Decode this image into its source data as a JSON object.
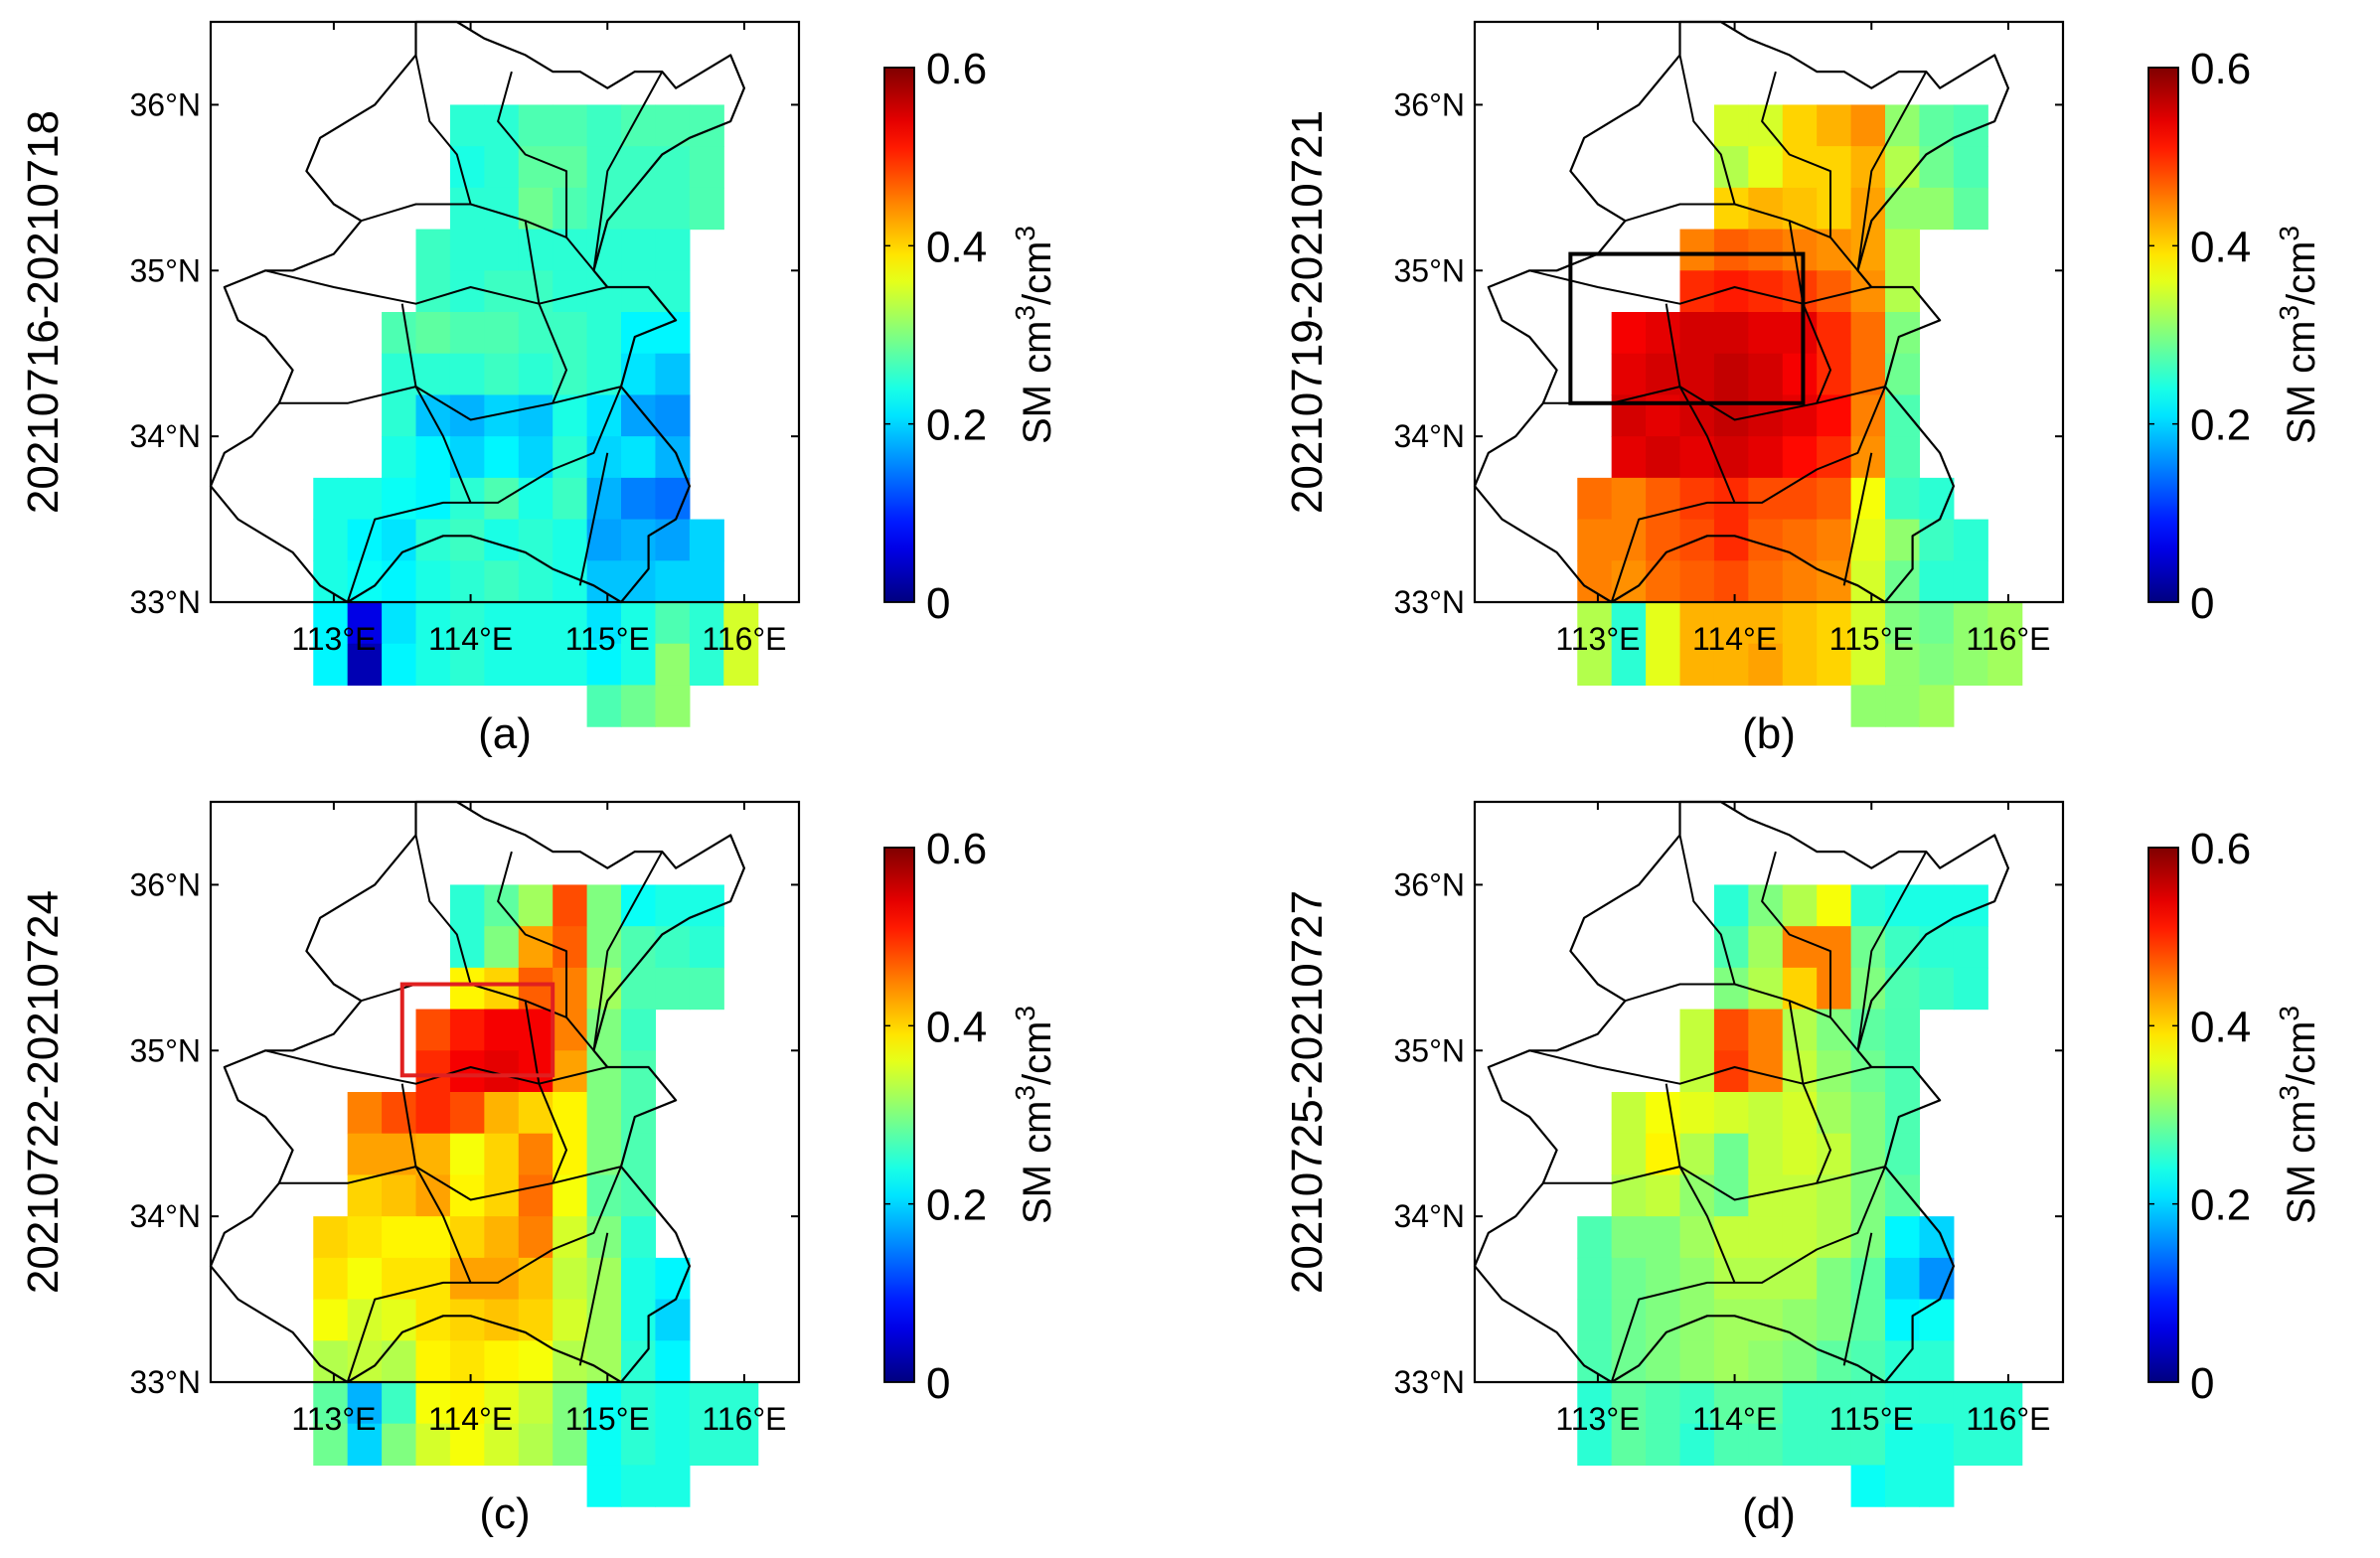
{
  "figure": {
    "colorbar": {
      "min": 0,
      "max": 0.6,
      "ticks": [
        "0",
        "0.2",
        "0.4",
        "0.6"
      ],
      "tick_values": [
        0,
        0.2,
        0.4,
        0.6
      ],
      "label_prefix": "SM cm",
      "label_sup1": "3",
      "label_mid": "/cm",
      "label_sup2": "3",
      "colormap": "jet"
    },
    "x_ticks": [
      "113°E",
      "114°E",
      "115°E",
      "116°E"
    ],
    "x_tick_values": [
      113,
      114,
      115,
      116
    ],
    "y_ticks": [
      "33°N",
      "34°N",
      "35°N",
      "36°N"
    ],
    "y_tick_values": [
      33,
      34,
      35,
      36
    ],
    "lon_range": [
      112.1,
      116.4
    ],
    "lat_range": [
      33.0,
      36.5
    ],
    "grid_lon_start": 112.6,
    "grid_lat_top": 36.0,
    "grid_cell_deg": 0.25
  },
  "chart_data": [
    {
      "type": "heatmap",
      "panel": "(a)",
      "date_range": "20210716-20210718",
      "title": "",
      "xlabel": "",
      "ylabel": "SM cm3/cm3",
      "grid": [
        [
          null,
          null,
          null,
          null,
          null,
          0.25,
          0.25,
          0.27,
          0.27,
          0.26,
          0.27,
          0.27,
          0.27,
          null,
          null,
          null
        ],
        [
          null,
          null,
          null,
          null,
          null,
          0.24,
          0.25,
          0.28,
          0.28,
          0.26,
          0.26,
          0.26,
          0.27,
          null,
          null,
          null
        ],
        [
          null,
          null,
          null,
          null,
          null,
          0.25,
          0.25,
          0.29,
          0.27,
          0.26,
          0.26,
          0.26,
          0.27,
          null,
          null,
          null
        ],
        [
          null,
          null,
          null,
          null,
          0.26,
          0.25,
          0.25,
          0.25,
          0.25,
          0.25,
          0.25,
          0.25,
          null,
          null,
          null,
          null
        ],
        [
          null,
          null,
          null,
          null,
          0.26,
          0.25,
          0.26,
          0.26,
          0.25,
          0.25,
          0.25,
          0.25,
          null,
          null,
          null,
          null
        ],
        [
          null,
          null,
          null,
          0.27,
          0.28,
          0.27,
          0.27,
          0.26,
          0.26,
          0.25,
          0.22,
          0.22,
          null,
          null,
          null,
          null
        ],
        [
          null,
          null,
          null,
          0.25,
          0.25,
          0.25,
          0.26,
          0.25,
          0.26,
          0.25,
          0.21,
          0.19,
          null,
          null,
          null,
          null
        ],
        [
          null,
          null,
          null,
          0.25,
          0.19,
          0.18,
          0.2,
          0.19,
          0.24,
          0.21,
          0.17,
          0.16,
          null,
          null,
          null,
          null
        ],
        [
          null,
          null,
          null,
          0.24,
          0.22,
          0.2,
          0.22,
          0.2,
          0.25,
          0.2,
          0.21,
          0.18,
          null,
          null,
          null,
          null
        ],
        [
          null,
          0.24,
          0.24,
          0.23,
          0.22,
          0.25,
          0.27,
          0.24,
          0.26,
          0.18,
          0.15,
          0.14,
          null,
          null,
          null,
          null
        ],
        [
          null,
          0.24,
          0.22,
          0.21,
          0.25,
          0.26,
          0.24,
          0.25,
          0.24,
          0.17,
          0.18,
          0.17,
          0.2,
          null,
          null,
          null
        ],
        [
          null,
          0.24,
          0.23,
          0.22,
          0.24,
          0.25,
          0.26,
          0.25,
          0.24,
          0.19,
          0.19,
          0.2,
          0.2,
          null,
          null,
          null
        ],
        [
          null,
          0.22,
          0.06,
          0.21,
          0.24,
          0.25,
          0.24,
          0.24,
          0.24,
          0.21,
          0.24,
          0.27,
          0.25,
          0.35,
          null,
          null
        ],
        [
          null,
          0.22,
          0.03,
          0.22,
          0.24,
          0.25,
          0.24,
          0.24,
          0.24,
          0.22,
          0.24,
          0.31,
          0.25,
          0.35,
          null,
          null
        ],
        [
          null,
          null,
          null,
          null,
          null,
          null,
          null,
          null,
          null,
          0.27,
          0.29,
          0.31,
          null,
          null,
          null,
          null
        ]
      ]
    },
    {
      "type": "heatmap",
      "panel": "(b)",
      "date_range": "20210719-20210721",
      "title": "",
      "xlabel": "",
      "ylabel": "SM cm3/cm3",
      "grid": [
        [
          null,
          null,
          null,
          null,
          null,
          0.35,
          0.35,
          0.4,
          0.42,
          0.44,
          0.31,
          0.28,
          0.27,
          null,
          null,
          null
        ],
        [
          null,
          null,
          null,
          null,
          null,
          0.33,
          0.36,
          0.4,
          0.4,
          0.42,
          0.33,
          0.29,
          0.27,
          null,
          null,
          null
        ],
        [
          null,
          null,
          null,
          null,
          null,
          0.4,
          0.42,
          0.41,
          0.4,
          0.43,
          0.31,
          0.31,
          0.28,
          null,
          null,
          null
        ],
        [
          null,
          null,
          null,
          null,
          0.45,
          0.47,
          0.46,
          0.45,
          0.44,
          0.43,
          0.33,
          null,
          null,
          null,
          null,
          null
        ],
        [
          null,
          null,
          null,
          null,
          0.5,
          0.51,
          0.5,
          0.49,
          0.47,
          0.44,
          0.33,
          null,
          null,
          null,
          null,
          null
        ],
        [
          null,
          null,
          0.53,
          0.54,
          0.55,
          0.55,
          0.54,
          0.54,
          0.5,
          0.46,
          0.3,
          null,
          null,
          null,
          null,
          null
        ],
        [
          null,
          null,
          0.54,
          0.55,
          0.55,
          0.56,
          0.55,
          0.53,
          0.5,
          0.46,
          0.29,
          null,
          null,
          null,
          null,
          null
        ],
        [
          null,
          null,
          0.55,
          0.54,
          0.55,
          0.56,
          0.55,
          0.54,
          0.52,
          0.45,
          0.27,
          null,
          null,
          null,
          null,
          null
        ],
        [
          null,
          null,
          0.54,
          0.55,
          0.54,
          0.55,
          0.54,
          0.52,
          0.5,
          0.44,
          0.27,
          null,
          null,
          null,
          null,
          null
        ],
        [
          null,
          0.46,
          0.45,
          0.47,
          0.49,
          0.5,
          0.48,
          0.48,
          0.47,
          0.37,
          0.26,
          0.25,
          null,
          null,
          null,
          null
        ],
        [
          null,
          0.45,
          0.45,
          0.47,
          0.48,
          0.5,
          0.47,
          0.46,
          0.45,
          0.36,
          0.31,
          0.26,
          0.25,
          null,
          null,
          null
        ],
        [
          null,
          0.45,
          0.44,
          0.46,
          0.47,
          0.48,
          0.46,
          0.45,
          0.44,
          0.35,
          0.29,
          0.25,
          0.25,
          null,
          null,
          null
        ],
        [
          null,
          0.33,
          0.25,
          0.36,
          0.42,
          0.42,
          0.42,
          0.41,
          0.4,
          0.35,
          0.3,
          0.29,
          0.31,
          0.32,
          null,
          null
        ],
        [
          null,
          0.33,
          0.25,
          0.36,
          0.42,
          0.42,
          0.43,
          0.41,
          0.4,
          0.35,
          0.31,
          0.3,
          0.31,
          0.32,
          null,
          null
        ],
        [
          null,
          null,
          null,
          null,
          null,
          null,
          null,
          null,
          null,
          0.31,
          0.31,
          0.32,
          null,
          null,
          null,
          null
        ]
      ]
    },
    {
      "type": "heatmap",
      "panel": "(c)",
      "date_range": "20210722-20210724",
      "title": "",
      "xlabel": "",
      "ylabel": "SM cm3/cm3",
      "grid": [
        [
          null,
          null,
          null,
          null,
          null,
          0.25,
          0.28,
          0.32,
          0.48,
          0.3,
          0.23,
          0.24,
          0.24,
          null,
          null,
          null
        ],
        [
          null,
          null,
          null,
          null,
          null,
          0.25,
          0.3,
          0.43,
          0.47,
          0.3,
          0.27,
          0.26,
          0.25,
          null,
          null,
          null
        ],
        [
          null,
          null,
          null,
          null,
          null,
          0.38,
          0.4,
          0.47,
          0.45,
          0.32,
          0.27,
          0.27,
          0.27,
          null,
          null,
          null
        ],
        [
          null,
          null,
          null,
          null,
          0.48,
          0.51,
          0.53,
          0.53,
          0.45,
          0.3,
          0.26,
          null,
          null,
          null,
          null,
          null
        ],
        [
          null,
          null,
          null,
          null,
          0.5,
          0.53,
          0.54,
          0.53,
          0.43,
          0.3,
          0.27,
          null,
          null,
          null,
          null,
          null
        ],
        [
          null,
          null,
          0.45,
          0.48,
          0.5,
          0.48,
          0.42,
          0.4,
          0.38,
          0.3,
          0.27,
          null,
          null,
          null,
          null,
          null
        ],
        [
          null,
          null,
          0.43,
          0.43,
          0.42,
          0.37,
          0.4,
          0.45,
          0.38,
          0.3,
          0.27,
          null,
          null,
          null,
          null,
          null
        ],
        [
          null,
          null,
          0.4,
          0.41,
          0.43,
          0.38,
          0.4,
          0.46,
          0.37,
          0.28,
          0.27,
          null,
          null,
          null,
          null,
          null
        ],
        [
          null,
          0.4,
          0.39,
          0.38,
          0.38,
          0.4,
          0.42,
          0.45,
          0.35,
          0.3,
          0.25,
          null,
          null,
          null,
          null,
          null
        ],
        [
          null,
          0.39,
          0.37,
          0.39,
          0.39,
          0.43,
          0.43,
          0.41,
          0.34,
          0.32,
          0.24,
          0.22,
          null,
          null,
          null,
          null
        ],
        [
          null,
          0.37,
          0.35,
          0.36,
          0.39,
          0.4,
          0.41,
          0.4,
          0.35,
          0.32,
          0.24,
          0.2,
          null,
          null,
          null,
          null
        ],
        [
          null,
          0.33,
          0.34,
          0.33,
          0.38,
          0.39,
          0.38,
          0.37,
          0.33,
          0.32,
          0.25,
          0.22,
          null,
          null,
          null,
          null
        ],
        [
          null,
          0.28,
          0.18,
          0.26,
          0.37,
          0.38,
          0.36,
          0.34,
          0.3,
          0.23,
          0.25,
          0.24,
          0.25,
          0.25,
          null,
          null
        ],
        [
          null,
          0.29,
          0.2,
          0.3,
          0.35,
          0.37,
          0.35,
          0.33,
          0.3,
          0.23,
          0.25,
          0.24,
          0.25,
          0.25,
          null,
          null
        ],
        [
          null,
          null,
          null,
          null,
          null,
          null,
          null,
          null,
          null,
          0.23,
          0.24,
          0.24,
          null,
          null,
          null,
          null
        ]
      ]
    },
    {
      "type": "heatmap",
      "panel": "(d)",
      "date_range": "20210725-20210727",
      "title": "",
      "xlabel": "",
      "ylabel": "SM cm3/cm3",
      "grid": [
        [
          null,
          null,
          null,
          null,
          null,
          0.25,
          0.3,
          0.33,
          0.37,
          0.25,
          0.24,
          0.24,
          0.24,
          null,
          null,
          null
        ],
        [
          null,
          null,
          null,
          null,
          null,
          0.27,
          0.32,
          0.45,
          0.45,
          0.29,
          0.26,
          0.25,
          0.25,
          null,
          null,
          null
        ],
        [
          null,
          null,
          null,
          null,
          null,
          0.3,
          0.33,
          0.4,
          0.45,
          0.3,
          0.27,
          0.26,
          0.25,
          null,
          null,
          null
        ],
        [
          null,
          null,
          null,
          null,
          0.34,
          0.48,
          0.45,
          0.33,
          0.3,
          0.28,
          0.27,
          null,
          null,
          null,
          null,
          null
        ],
        [
          null,
          null,
          null,
          null,
          0.34,
          0.49,
          0.45,
          0.34,
          0.31,
          0.29,
          0.27,
          null,
          null,
          null,
          null,
          null
        ],
        [
          null,
          null,
          0.34,
          0.37,
          0.36,
          0.35,
          0.34,
          0.35,
          0.32,
          0.3,
          0.27,
          null,
          null,
          null,
          null,
          null
        ],
        [
          null,
          null,
          0.34,
          0.38,
          0.33,
          0.29,
          0.34,
          0.35,
          0.34,
          0.3,
          0.27,
          null,
          null,
          null,
          null,
          null
        ],
        [
          null,
          null,
          0.33,
          0.34,
          0.31,
          0.29,
          0.34,
          0.34,
          0.33,
          0.3,
          0.28,
          null,
          null,
          null,
          null,
          null
        ],
        [
          null,
          0.27,
          0.3,
          0.3,
          0.32,
          0.34,
          0.34,
          0.34,
          0.33,
          0.3,
          0.22,
          0.2,
          null,
          null,
          null,
          null
        ],
        [
          null,
          0.27,
          0.29,
          0.3,
          0.31,
          0.33,
          0.33,
          0.33,
          0.3,
          0.28,
          0.2,
          0.16,
          null,
          null,
          null,
          null
        ],
        [
          null,
          0.27,
          0.29,
          0.3,
          0.31,
          0.32,
          0.32,
          0.31,
          0.3,
          0.28,
          0.22,
          0.23,
          null,
          null,
          null,
          null
        ],
        [
          null,
          0.27,
          0.29,
          0.3,
          0.31,
          0.32,
          0.31,
          0.3,
          0.28,
          0.27,
          0.25,
          0.25,
          null,
          null,
          null,
          null
        ],
        [
          null,
          0.25,
          0.28,
          0.27,
          0.26,
          0.28,
          0.28,
          0.26,
          0.26,
          0.26,
          0.25,
          0.25,
          0.25,
          0.25,
          null,
          null
        ],
        [
          null,
          0.25,
          0.28,
          0.27,
          0.25,
          0.27,
          0.27,
          0.26,
          0.26,
          0.26,
          0.24,
          0.24,
          0.25,
          0.25,
          null,
          null
        ],
        [
          null,
          null,
          null,
          null,
          null,
          null,
          null,
          null,
          null,
          0.23,
          0.24,
          0.24,
          null,
          null,
          null,
          null
        ]
      ]
    }
  ],
  "panels": [
    {
      "id": "a",
      "label": "(a)",
      "date_range": "20210716-20210718",
      "highlight_box": null
    },
    {
      "id": "b",
      "label": "(b)",
      "date_range": "20210719-20210721",
      "highlight_box": {
        "lon_min": 112.8,
        "lon_max": 114.5,
        "lat_min": 34.2,
        "lat_max": 35.1,
        "color": "#000000"
      }
    },
    {
      "id": "c",
      "label": "(c)",
      "date_range": "20210722-20210724",
      "highlight_box": {
        "lon_min": 113.5,
        "lon_max": 114.6,
        "lat_min": 34.85,
        "lat_max": 35.4,
        "color": "#e02020"
      }
    },
    {
      "id": "d",
      "label": "(d)",
      "date_range": "20210725-20210727",
      "highlight_box": null
    }
  ]
}
